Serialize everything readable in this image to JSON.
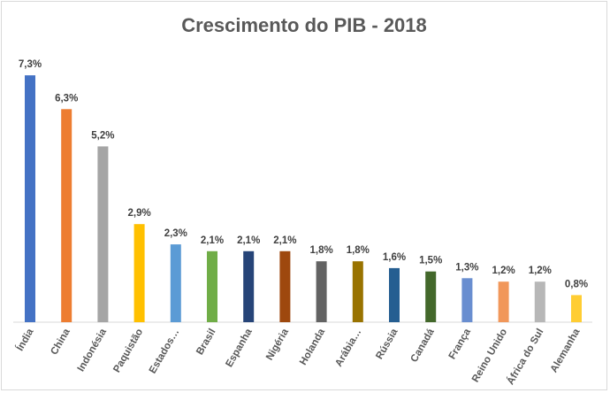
{
  "chart_data": {
    "type": "bar",
    "title": "Crescimento do PIB - 2018",
    "xlabel": "",
    "ylabel": "",
    "ylim": [
      0,
      8
    ],
    "grid": false,
    "legend": "none",
    "categories": [
      "Índia",
      "China",
      "Indonésia",
      "Paquistão",
      "Estados…",
      "Brasil",
      "Espanha",
      "Nigéria",
      "Holanda",
      "Arábia…",
      "Rússia",
      "Canadá",
      "França",
      "Reino Unido",
      "África do Sul",
      "Alemanha"
    ],
    "values": [
      7.3,
      6.3,
      5.2,
      2.9,
      2.3,
      2.1,
      2.1,
      2.1,
      1.8,
      1.8,
      1.6,
      1.5,
      1.3,
      1.2,
      1.2,
      0.8
    ],
    "value_labels": [
      "7,3%",
      "6,3%",
      "5,2%",
      "2,9%",
      "2,3%",
      "2,1%",
      "2,1%",
      "2,1%",
      "1,8%",
      "1,8%",
      "1,6%",
      "1,5%",
      "1,3%",
      "1,2%",
      "1,2%",
      "0,8%"
    ],
    "colors": [
      "#4472C4",
      "#ED7D31",
      "#A5A5A5",
      "#FFC000",
      "#5B9BD5",
      "#70AD47",
      "#264478",
      "#9E480E",
      "#636363",
      "#997300",
      "#255E91",
      "#43682B",
      "#698ED0",
      "#F1975A",
      "#B7B7B7",
      "#FFCD33"
    ]
  }
}
